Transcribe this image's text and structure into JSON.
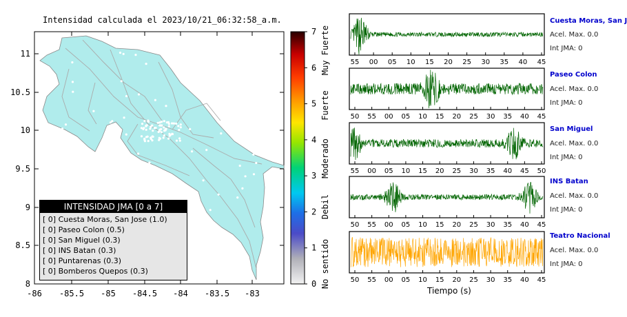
{
  "map": {
    "title": "Intensidad calculada el 2023/10/21_06:32:58_a.m.",
    "lon_ticks": [
      "-86",
      "-85.5",
      "-85",
      "-84.5",
      "-84",
      "-83.5",
      "-83"
    ],
    "lat_ticks": [
      "11",
      "10.5",
      "10",
      "9.5",
      "9",
      "8.5",
      "8"
    ],
    "land_color": "#b0ecec",
    "legend": {
      "title": "INTENSIDAD JMA [0 a 7]",
      "items": [
        "[ 0]  Cuesta Moras, San Jose (1.0)",
        "[ 0]  Paseo Colon (0.5)",
        "[ 0]  San Miguel (0.3)",
        "[ 0]  INS Batan (0.3)",
        "[ 0]  Puntarenas (0.3)",
        "[ 0]  Bomberos Quepos (0.3)"
      ]
    }
  },
  "colorbar": {
    "ticks": [
      "0",
      "1",
      "2",
      "3",
      "4",
      "5",
      "6",
      "7"
    ],
    "categories": [
      "No sentido",
      "Debil",
      "Moderado",
      "Fuerte",
      "Muy Fuerte"
    ]
  },
  "chart_data": {
    "type": "line",
    "xlabel": "Tiempo (s)",
    "traces": [
      {
        "name": "Cuesta Moras, San Jose",
        "accel_label": "Acel. Max. 0.0",
        "jma_label": "Int JMA: 0",
        "color": "#006400",
        "tick_labels": [
          "55",
          "00",
          "05",
          "10",
          "15",
          "20",
          "25",
          "30",
          "35",
          "40",
          "45"
        ],
        "burst_centers": [
          0.05
        ],
        "burst_amplitude": 1.0,
        "baseline_amplitude": 0.12
      },
      {
        "name": "Paseo Colon",
        "accel_label": "Acel. Max. 0.0",
        "jma_label": "Int JMA: 0",
        "color": "#006400",
        "tick_labels": [
          "50",
          "55",
          "00",
          "05",
          "10",
          "15",
          "20",
          "25",
          "30",
          "35",
          "40",
          "45"
        ],
        "burst_centers": [
          0.42
        ],
        "burst_amplitude": 0.9,
        "baseline_amplitude": 0.3
      },
      {
        "name": "San Miguel",
        "accel_label": "Acel. Max. 0.0",
        "jma_label": "Int JMA: 0",
        "color": "#006400",
        "tick_labels": [
          "55",
          "00",
          "05",
          "10",
          "15",
          "20",
          "25",
          "30",
          "35",
          "40",
          "45",
          "50"
        ],
        "burst_centers": [
          0.02,
          0.85
        ],
        "burst_amplitude": 0.7,
        "baseline_amplitude": 0.22
      },
      {
        "name": "INS Batan",
        "accel_label": "Acel. Max. 0.0",
        "jma_label": "Int JMA: 0",
        "color": "#006400",
        "tick_labels": [
          "50",
          "55",
          "00",
          "05",
          "10",
          "15",
          "20",
          "25",
          "30",
          "35",
          "40",
          "45"
        ],
        "burst_centers": [
          0.22,
          0.93
        ],
        "burst_amplitude": 0.8,
        "baseline_amplitude": 0.15
      },
      {
        "name": "Teatro Nacional",
        "accel_label": "Acel. Max. 0.0",
        "jma_label": "Int JMA: 0",
        "color": "#ffa500",
        "tick_labels": [
          "50",
          "55",
          "00",
          "05",
          "10",
          "15",
          "20",
          "25",
          "30",
          "35",
          "40",
          "45"
        ],
        "burst_centers": [],
        "burst_amplitude": 0.8,
        "baseline_amplitude": 0.8
      }
    ]
  }
}
